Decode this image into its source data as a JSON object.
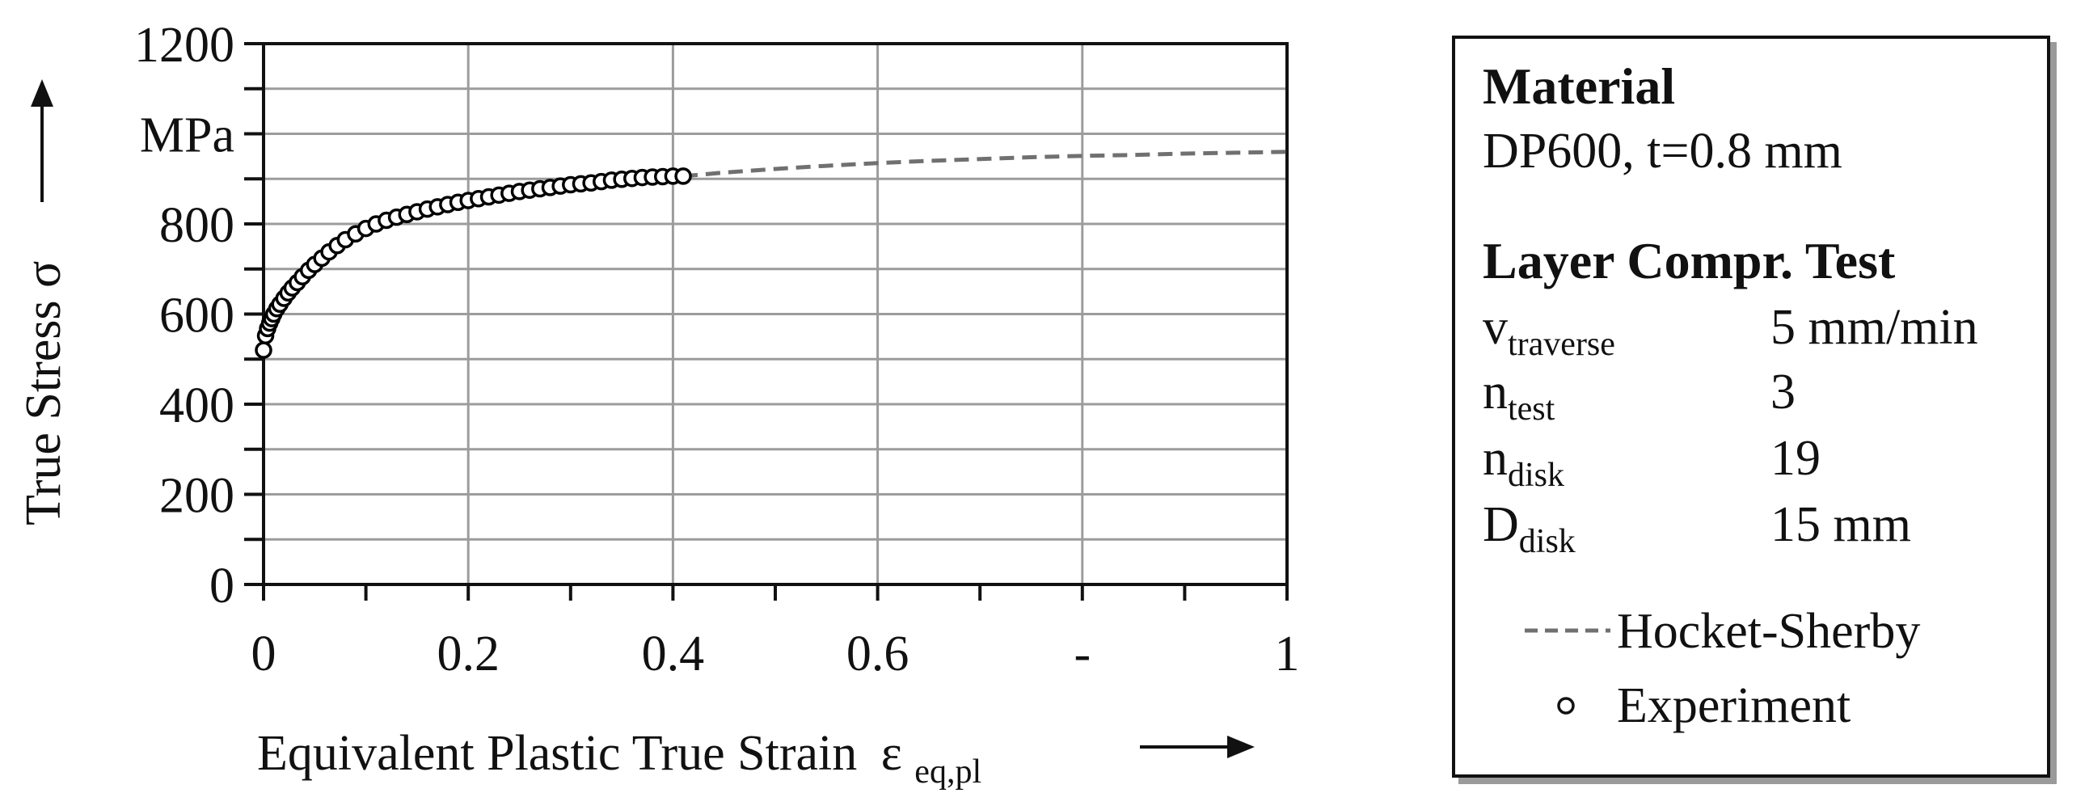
{
  "chart_data": {
    "type": "line",
    "xlabel": "Equivalent Plastic True Strain",
    "xlabel_symbol": "ε",
    "xlabel_subscript": "eq,pl",
    "ylabel": "True Stress σ",
    "y_unit": "MPa",
    "xlim": [
      0,
      1
    ],
    "ylim": [
      0,
      1200
    ],
    "grid": true,
    "x_ticks": [
      {
        "value": 0,
        "label": "0"
      },
      {
        "value": 0.2,
        "label": "0.2"
      },
      {
        "value": 0.4,
        "label": "0.4"
      },
      {
        "value": 0.6,
        "label": "0.6"
      },
      {
        "value": 0.8,
        "label": "-"
      },
      {
        "value": 1.0,
        "label": "1"
      }
    ],
    "y_ticks": [
      {
        "value": 0,
        "label": "0"
      },
      {
        "value": 200,
        "label": "200"
      },
      {
        "value": 400,
        "label": "400"
      },
      {
        "value": 600,
        "label": "600"
      },
      {
        "value": 800,
        "label": "800"
      },
      {
        "value": 1200,
        "label": "1200"
      }
    ],
    "series": [
      {
        "name": "Hocket-Sherby",
        "style": "dashed",
        "color": "#707070",
        "x": [
          0.41,
          0.45,
          0.5,
          0.55,
          0.6,
          0.65,
          0.7,
          0.75,
          0.8,
          0.85,
          0.9,
          0.95,
          1.0
        ],
        "y": [
          906,
          914,
          922,
          929,
          935,
          940,
          944,
          948,
          951,
          953,
          956,
          958,
          960
        ]
      },
      {
        "name": "Experiment",
        "style": "markers",
        "color": "#000000",
        "x": [
          0.0,
          0.002,
          0.004,
          0.006,
          0.008,
          0.01,
          0.013,
          0.016,
          0.02,
          0.024,
          0.028,
          0.033,
          0.038,
          0.044,
          0.05,
          0.057,
          0.064,
          0.072,
          0.08,
          0.09,
          0.1,
          0.11,
          0.12,
          0.13,
          0.14,
          0.15,
          0.16,
          0.17,
          0.18,
          0.19,
          0.2,
          0.21,
          0.22,
          0.23,
          0.24,
          0.25,
          0.26,
          0.27,
          0.28,
          0.29,
          0.3,
          0.31,
          0.32,
          0.33,
          0.34,
          0.35,
          0.36,
          0.37,
          0.38,
          0.39,
          0.4,
          0.41
        ],
        "y": [
          520,
          552,
          568,
          580,
          590,
          600,
          612,
          622,
          635,
          647,
          658,
          670,
          683,
          697,
          710,
          724,
          738,
          752,
          765,
          778,
          790,
          800,
          808,
          815,
          821,
          827,
          833,
          838,
          843,
          848,
          852,
          856,
          860,
          864,
          868,
          872,
          875,
          878,
          881,
          884,
          887,
          889,
          891,
          894,
          897,
          899,
          901,
          903,
          904,
          905,
          906,
          906
        ]
      }
    ]
  },
  "info_box": {
    "material_heading": "Material",
    "material_value": "DP600, t=0.8 mm",
    "test_heading": "Layer Compr. Test",
    "params": [
      {
        "name": "v",
        "sub": "traverse",
        "value": "5 mm/min"
      },
      {
        "name": "n",
        "sub": "test",
        "value": "3"
      },
      {
        "name": "n",
        "sub": "disk",
        "value": "19"
      },
      {
        "name": "D",
        "sub": "disk",
        "value": "15 mm"
      }
    ],
    "legend": [
      {
        "label": "Hocket-Sherby",
        "swatch": "dashed-line"
      },
      {
        "label": "Experiment",
        "swatch": "circle-marker"
      }
    ]
  }
}
